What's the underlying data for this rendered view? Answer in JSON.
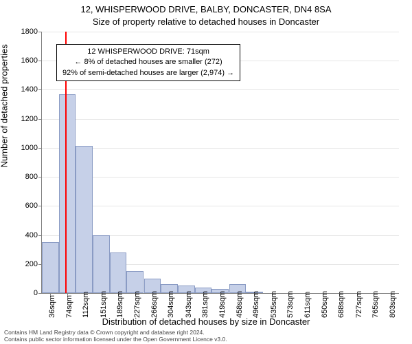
{
  "title_line1": "12, WHISPERWOOD DRIVE, BALBY, DONCASTER, DN4 8SA",
  "title_line2": "Size of property relative to detached houses in Doncaster",
  "ylabel": "Number of detached properties",
  "xlabel": "Distribution of detached houses by size in Doncaster",
  "annotation": {
    "line1": "12 WHISPERWOOD DRIVE: 71sqm",
    "line2": "← 8% of detached houses are smaller (272)",
    "line3": "92% of semi-detached houses are larger (2,974) →"
  },
  "footer": {
    "line1": "Contains HM Land Registry data © Crown copyright and database right 2024.",
    "line2": "Contains public sector information licensed under the Open Government Licence v3.0."
  },
  "chart": {
    "type": "bar",
    "ylim": [
      0,
      1800
    ],
    "ytick_step": 200,
    "yticks": [
      0,
      200,
      400,
      600,
      800,
      1000,
      1200,
      1400,
      1600,
      1800
    ],
    "xtick_labels": [
      "36sqm",
      "74sqm",
      "112sqm",
      "151sqm",
      "189sqm",
      "227sqm",
      "266sqm",
      "304sqm",
      "343sqm",
      "381sqm",
      "419sqm",
      "458sqm",
      "496sqm",
      "535sqm",
      "573sqm",
      "611sqm",
      "650sqm",
      "688sqm",
      "727sqm",
      "765sqm",
      "803sqm"
    ],
    "bars": [
      {
        "x": 36,
        "v": 350
      },
      {
        "x": 74,
        "v": 1370
      },
      {
        "x": 112,
        "v": 1015
      },
      {
        "x": 151,
        "v": 400
      },
      {
        "x": 189,
        "v": 280
      },
      {
        "x": 227,
        "v": 150
      },
      {
        "x": 266,
        "v": 100
      },
      {
        "x": 304,
        "v": 60
      },
      {
        "x": 343,
        "v": 50
      },
      {
        "x": 381,
        "v": 40
      },
      {
        "x": 419,
        "v": 30
      },
      {
        "x": 458,
        "v": 60
      },
      {
        "x": 496,
        "v": 10
      },
      {
        "x": 535,
        "v": 0
      },
      {
        "x": 573,
        "v": 0
      },
      {
        "x": 611,
        "v": 0
      },
      {
        "x": 650,
        "v": 0
      },
      {
        "x": 688,
        "v": 0
      },
      {
        "x": 727,
        "v": 0
      },
      {
        "x": 765,
        "v": 0
      },
      {
        "x": 803,
        "v": 0
      }
    ],
    "bar_fill": "#c6d0e8",
    "bar_border": "#8a9bc4",
    "background": "#ffffff",
    "grid_color": "#e6e6e6",
    "marker": {
      "x": 71,
      "color": "#ff0000"
    },
    "x_domain": [
      17,
      822
    ],
    "bar_width_sqm": 38
  }
}
